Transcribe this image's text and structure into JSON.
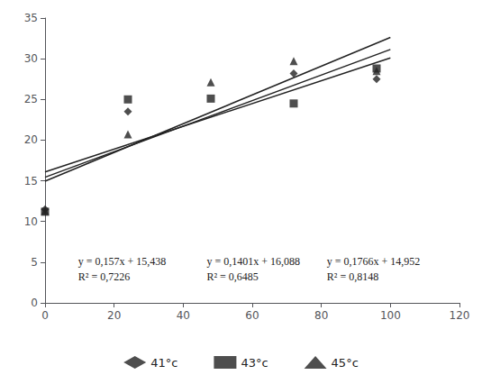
{
  "chart_data": {
    "type": "scatter",
    "series": [
      {
        "name": "41°c",
        "type": "scatter",
        "marker": "diamond",
        "color": "#222222",
        "x": [
          0,
          24,
          72,
          96
        ],
        "values": [
          11.5,
          23.5,
          28.2,
          27.5
        ]
      },
      {
        "name": "43°c",
        "type": "scatter",
        "marker": "square",
        "color": "#222222",
        "x": [
          0,
          24,
          48,
          72,
          96
        ],
        "values": [
          11.2,
          25.0,
          25.1,
          24.5,
          28.8
        ]
      },
      {
        "name": "45°c",
        "type": "scatter",
        "marker": "triangle",
        "color": "#222222",
        "x": [
          0,
          24,
          48,
          72,
          96
        ],
        "values": [
          11.3,
          20.7,
          27.1,
          29.7,
          28.5
        ]
      },
      {
        "type": "line",
        "color": "#222222",
        "x": [
          0,
          100
        ],
        "values": [
          15.438,
          31.138
        ]
      },
      {
        "type": "line",
        "color": "#222222",
        "x": [
          0,
          100
        ],
        "values": [
          16.088,
          30.098
        ]
      },
      {
        "type": "line",
        "color": "#222222",
        "x": [
          0,
          100
        ],
        "values": [
          14.952,
          32.612
        ]
      }
    ],
    "annotations": [
      "y = 0,157x + 15,438",
      "R² = 0,7226",
      "y = 0,1401x + 16,088",
      "R² = 0,6485",
      "y = 0,1766x + 14,952",
      "R² = 0,8148"
    ],
    "xlim": [
      0,
      120
    ],
    "xticks": [
      0,
      20,
      40,
      60,
      80,
      100,
      120
    ],
    "ylim": [
      0,
      35
    ],
    "yticks": [
      0,
      5,
      10,
      15,
      20,
      25,
      30,
      35
    ],
    "grid": false,
    "legend": "bottom"
  }
}
